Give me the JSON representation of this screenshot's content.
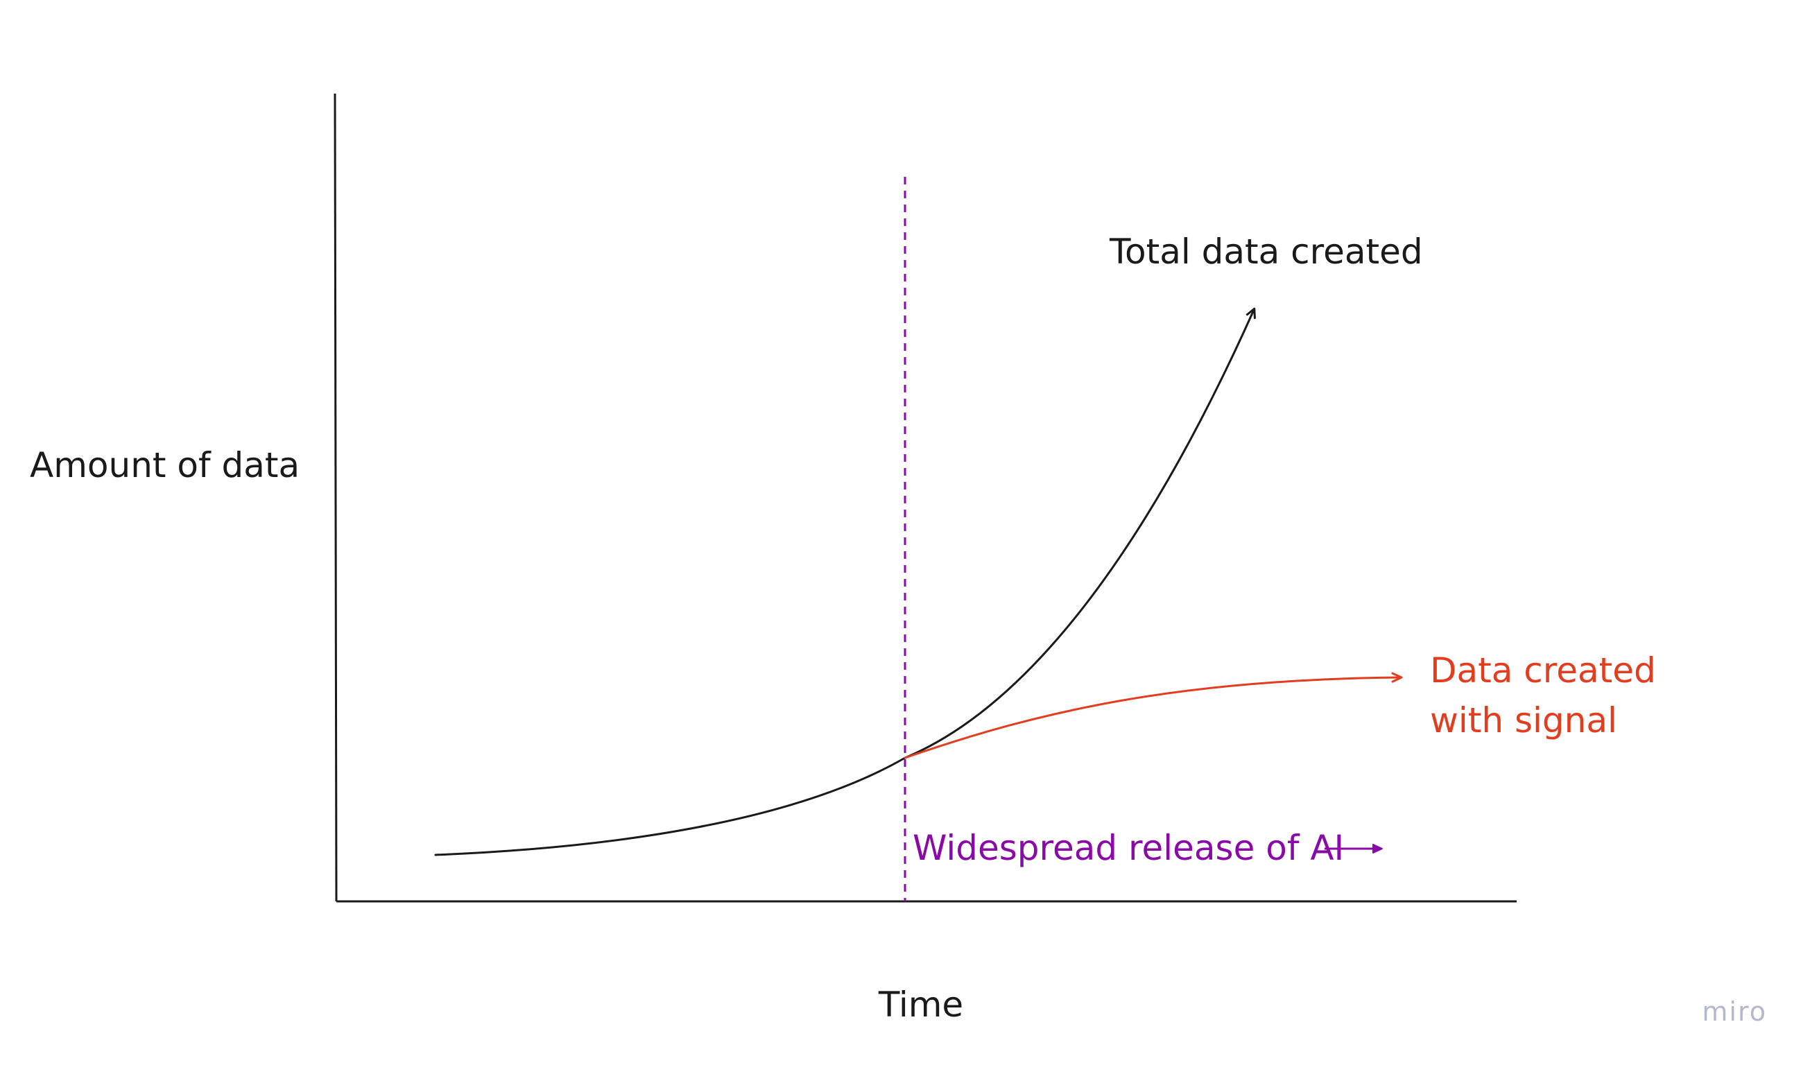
{
  "diagram": {
    "y_axis_label": "Amount of data",
    "x_axis_label": "Time",
    "total_curve_label": "Total data created",
    "signal_curve_label_line1": "Data created",
    "signal_curve_label_line2": "with signal",
    "ai_release_label": "Widespread release of AI",
    "watermark": "miro"
  },
  "colors": {
    "axis": "#1a1a1a",
    "total_curve": "#1a1a1a",
    "signal_curve": "#e23d1f",
    "ai_marker": "#8a0aa8",
    "watermark": "#b3b8cc"
  }
}
